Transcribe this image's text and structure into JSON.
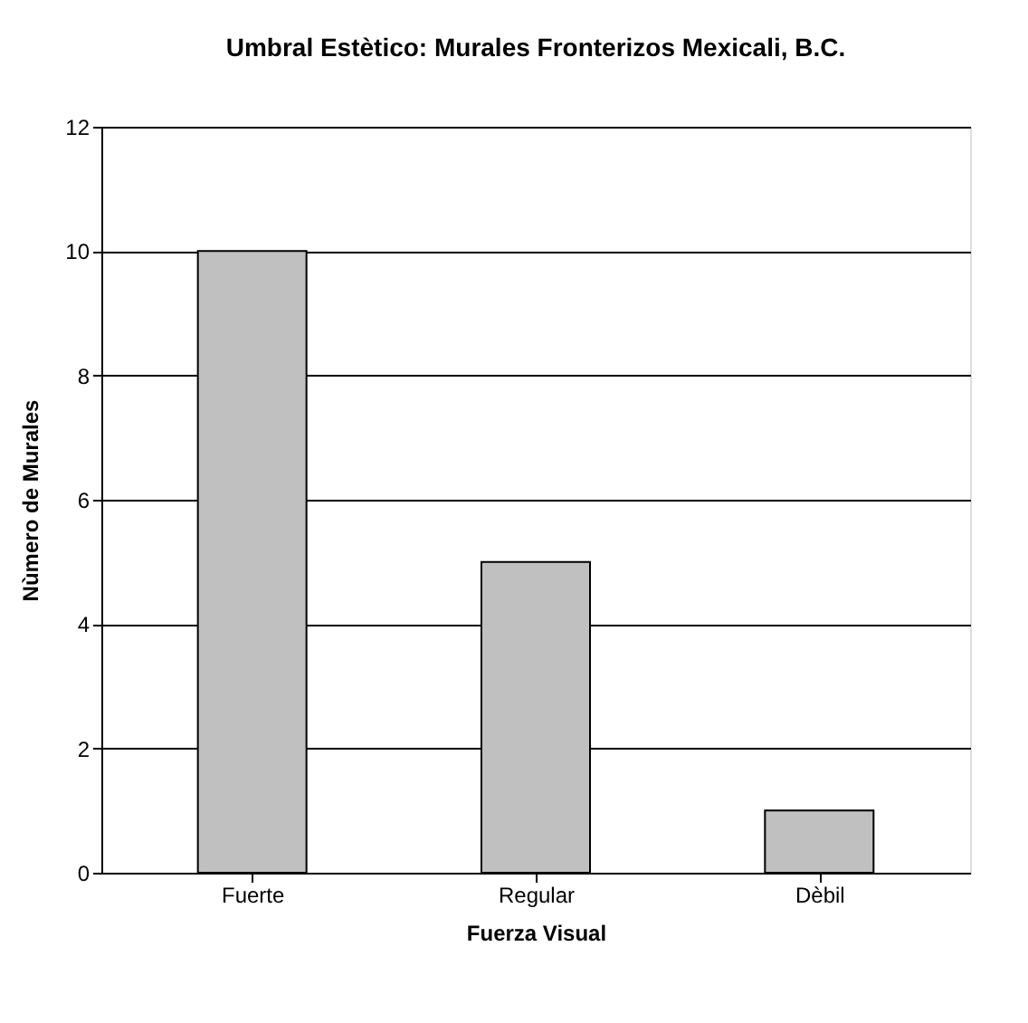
{
  "chart_data": {
    "type": "bar",
    "title": "Umbral Estètico: Murales Fronterizos Mexicali, B.C.",
    "xlabel": "Fuerza Visual",
    "ylabel": "Nùmero de Murales",
    "categories": [
      "Fuerte",
      "Regular",
      "Dèbil"
    ],
    "values": [
      10,
      5,
      1
    ],
    "color": "#c0c0c0",
    "ylim": [
      0,
      12
    ],
    "yticks": [
      0,
      2,
      4,
      6,
      8,
      10,
      12
    ],
    "grid": "y"
  }
}
